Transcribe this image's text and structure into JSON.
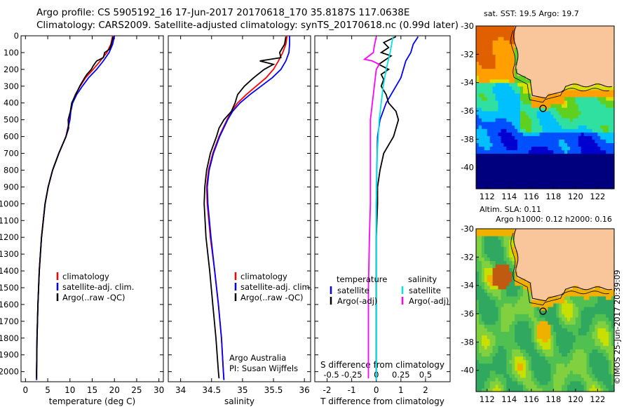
{
  "header": {
    "line1": "Argo profile: CS 5905192_16 17-Jun-2017 20170618_170 35.8187S 117.0638E",
    "line2": "Climatology: CARS2009. Satellite-adjusted climatology: synTS_20170618.nc (0.99d later)",
    "map_top_title": "sat. SST: 19.5 Argo: 19.7",
    "map_bottom_title1": "Altim. SLA: 0.11",
    "map_bottom_title2": "Argo h1000: 0.12 h2000: 0.16",
    "timestamp": "©IMOS 25-Jun-2017 20:39:09"
  },
  "colors": {
    "climatology": "#ff0000",
    "satellite": "#0000ff",
    "argo": "#000000",
    "s_satellite": "#00e6e6",
    "s_argo": "#ff00ff",
    "land": "#f9c59a"
  },
  "chart_data": [
    {
      "type": "line",
      "xlabel": "temperature (deg C)",
      "ylabel": "",
      "xlim": [
        -1,
        31
      ],
      "ylim": [
        2060,
        0
      ],
      "xticks": [
        0,
        5,
        10,
        15,
        20,
        25,
        30
      ],
      "yticks": [
        0,
        100,
        200,
        300,
        400,
        500,
        600,
        700,
        800,
        900,
        1000,
        1100,
        1200,
        1300,
        1400,
        1500,
        1600,
        1700,
        1800,
        1900,
        2000
      ],
      "legend": [
        "climatology",
        "satellite-adj. clim.",
        "Argo(..raw -QC)"
      ],
      "legend_position": "lower-center",
      "series": [
        {
          "name": "climatology",
          "depth": [
            0,
            50,
            100,
            150,
            200,
            250,
            300,
            350,
            400,
            450,
            500,
            600,
            700,
            800,
            900,
            1000,
            1200,
            1400,
            1600,
            1800,
            2000,
            2050
          ],
          "values": [
            19.6,
            19.2,
            18.3,
            16.8,
            15.2,
            13.5,
            12.3,
            11.2,
            10.5,
            10.1,
            9.9,
            9.1,
            7.5,
            6.1,
            5.1,
            4.4,
            3.6,
            3.1,
            2.8,
            2.6,
            2.5,
            2.5
          ]
        },
        {
          "name": "satellite-adj. clim.",
          "depth": [
            0,
            50,
            100,
            150,
            200,
            250,
            300,
            350,
            400,
            450,
            500,
            600,
            700,
            800,
            900,
            1000,
            1200,
            1400,
            1600,
            1800,
            2000,
            2050
          ],
          "values": [
            20.0,
            19.6,
            18.8,
            17.5,
            16.0,
            14.2,
            12.8,
            11.5,
            10.6,
            10.2,
            10.0,
            9.1,
            7.5,
            6.1,
            5.1,
            4.4,
            3.6,
            3.1,
            2.8,
            2.6,
            2.5,
            2.5
          ]
        },
        {
          "name": "Argo(..raw -QC)",
          "depth": [
            5,
            50,
            80,
            100,
            130,
            150,
            180,
            200,
            230,
            250,
            300,
            350,
            400,
            450,
            500,
            550,
            600,
            700,
            800,
            900,
            1000,
            1200,
            1400,
            1600,
            1800,
            2000,
            2040
          ],
          "values": [
            19.7,
            19.3,
            18.9,
            17.8,
            17.5,
            16.0,
            15.2,
            14.8,
            13.8,
            13.3,
            12.2,
            11.3,
            10.4,
            10.1,
            9.6,
            9.7,
            9.1,
            7.5,
            6.1,
            5.1,
            4.4,
            3.6,
            3.1,
            2.8,
            2.6,
            2.5,
            2.5
          ]
        }
      ]
    },
    {
      "type": "line",
      "xlabel": "salinity",
      "ylabel": "",
      "xlim": [
        33.8,
        36.1
      ],
      "ylim": [
        2060,
        0
      ],
      "xticks": [
        34,
        34.5,
        35,
        35.5,
        36
      ],
      "legend": [
        "climatology",
        "satellite-adj. clim.",
        "Argo(..raw -QC)"
      ],
      "legend_position": "lower-right",
      "annotation": [
        "Argo Australia",
        "PI: Susan Wijffels"
      ],
      "series": [
        {
          "name": "climatology",
          "depth": [
            0,
            50,
            100,
            150,
            200,
            250,
            300,
            350,
            400,
            450,
            500,
            600,
            700,
            800,
            900,
            1000,
            1200,
            1400,
            1600,
            1800,
            2000,
            2050
          ],
          "values": [
            35.72,
            35.7,
            35.65,
            35.58,
            35.5,
            35.38,
            35.22,
            35.06,
            34.92,
            34.82,
            34.75,
            34.62,
            34.52,
            34.45,
            34.42,
            34.43,
            34.48,
            34.55,
            34.61,
            34.66,
            34.69,
            34.7
          ]
        },
        {
          "name": "satellite-adj. clim.",
          "depth": [
            0,
            50,
            100,
            150,
            200,
            250,
            300,
            350,
            400,
            450,
            500,
            600,
            700,
            800,
            900,
            1000,
            1200,
            1400,
            1600,
            1800,
            2000,
            2050
          ],
          "values": [
            35.76,
            35.76,
            35.75,
            35.7,
            35.62,
            35.48,
            35.3,
            35.12,
            34.96,
            34.84,
            34.76,
            34.63,
            34.53,
            34.46,
            34.43,
            34.44,
            34.49,
            34.55,
            34.61,
            34.66,
            34.69,
            34.7
          ]
        },
        {
          "name": "Argo(..raw -QC)",
          "depth": [
            5,
            50,
            100,
            130,
            150,
            170,
            200,
            250,
            300,
            350,
            400,
            450,
            500,
            550,
            600,
            700,
            800,
            900,
            1000,
            1200,
            1400,
            1600,
            1800,
            2000,
            2040
          ],
          "values": [
            35.7,
            35.68,
            35.6,
            35.62,
            35.28,
            35.5,
            35.35,
            35.18,
            35.03,
            34.92,
            34.88,
            34.82,
            34.7,
            34.62,
            34.58,
            34.48,
            34.42,
            34.39,
            34.38,
            34.41,
            34.47,
            34.52,
            34.57,
            34.61,
            34.62
          ]
        }
      ]
    },
    {
      "type": "line",
      "xlabel": "T difference from climatology",
      "xlabel_top": "S difference from climatology",
      "xlim": [
        -2.5,
        3.0
      ],
      "ylim": [
        2060,
        0
      ],
      "xticks": [
        -2,
        -1,
        0,
        1,
        2
      ],
      "xticks_top": [
        -0.5,
        -0.25,
        0,
        0.25,
        0.5
      ],
      "legend_titles": [
        "temperature",
        "salinity"
      ],
      "legend": [
        "satellite",
        "Argo(-adj)",
        "satellite",
        "Argo(-adj)"
      ],
      "legend_position": "lower-center",
      "series": [
        {
          "name": "temperature satellite",
          "depth": [
            5,
            50,
            100,
            150,
            200,
            250,
            300,
            400,
            500,
            600,
            800,
            1000,
            1500,
            2050
          ],
          "values": [
            1.7,
            1.5,
            1.4,
            1.2,
            1.1,
            1.0,
            0.8,
            0.4,
            0.15,
            0.05,
            0.02,
            0.0,
            0.0,
            0.0
          ]
        },
        {
          "name": "temperature Argo(-adj)",
          "depth": [
            5,
            40,
            70,
            100,
            120,
            150,
            170,
            200,
            230,
            260,
            300,
            350,
            400,
            450,
            500,
            550,
            600,
            650,
            700,
            800,
            900,
            1000,
            1200,
            1600,
            2040
          ],
          "values": [
            0.8,
            0.3,
            0.5,
            0.2,
            0.6,
            0.3,
            0.1,
            0.5,
            0.2,
            0.3,
            0.2,
            0.4,
            0.5,
            0.8,
            0.9,
            0.8,
            0.7,
            0.5,
            0.3,
            0.15,
            0.05,
            0.05,
            0.0,
            0.0,
            0.0
          ]
        },
        {
          "name": "salinity satellite",
          "depth": [
            5,
            100,
            200,
            300,
            400,
            500,
            700,
            1000,
            1500,
            2050
          ],
          "values": [
            0.17,
            0.14,
            0.1,
            0.07,
            0.05,
            0.03,
            0.01,
            0.0,
            0.0,
            0.0
          ]
        },
        {
          "name": "salinity Argo(-adj)",
          "depth": [
            5,
            60,
            100,
            140,
            150,
            170,
            200,
            250,
            300,
            400,
            500,
            600,
            700,
            800,
            900,
            1000,
            1200,
            1500,
            1800,
            2040
          ],
          "values": [
            0.0,
            -0.02,
            -0.03,
            -0.12,
            -0.04,
            0.03,
            0.0,
            -0.01,
            -0.02,
            -0.04,
            -0.06,
            -0.06,
            -0.06,
            -0.06,
            -0.06,
            -0.06,
            -0.07,
            -0.08,
            -0.08,
            -0.08
          ]
        }
      ]
    },
    {
      "type": "heatmap",
      "title": "sat. SST: 19.5 Argo: 19.7",
      "xlim": [
        111,
        123.5
      ],
      "ylim": [
        -41.5,
        -30
      ],
      "xticks": [
        112,
        114,
        116,
        118,
        120,
        122
      ],
      "yticks": [
        -30,
        -32,
        -34,
        -36,
        -38,
        -40
      ],
      "marker": {
        "lon": 117.06,
        "lat": -35.82
      }
    },
    {
      "type": "heatmap",
      "title": "Altim. SLA: 0.11",
      "subtitle": "Argo h1000: 0.12 h2000: 0.16",
      "xlim": [
        111,
        123.5
      ],
      "ylim": [
        -41.5,
        -30
      ],
      "xticks": [
        112,
        114,
        116,
        118,
        120,
        122
      ],
      "yticks": [
        -30,
        -32,
        -34,
        -36,
        -38,
        -40
      ],
      "marker": {
        "lon": 117.06,
        "lat": -35.82
      }
    }
  ]
}
